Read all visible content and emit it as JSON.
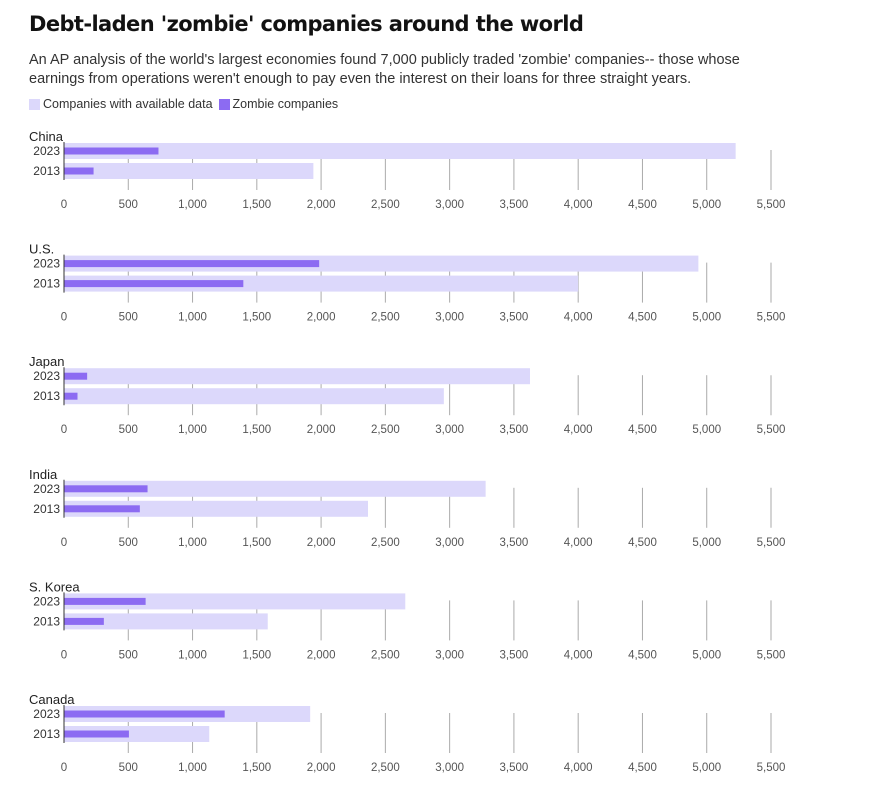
{
  "title": "Debt-laden 'zombie' companies around the world",
  "subtitle": "An AP analysis of the world's largest economies found 7,000 publicly traded 'zombie' companies-- those whose earnings from operations weren't enough to pay even the interest on their loans for three straight years.",
  "legend": {
    "available_label": "Companies with available data",
    "zombie_label": "Zombie companies"
  },
  "colors": {
    "available": "#dcd8fb",
    "zombie": "#8c6bf2",
    "gridline": "#aaaaaa"
  },
  "chart_data": [
    {
      "type": "bar",
      "orientation": "horizontal",
      "title": "China",
      "categories": [
        "2023",
        "2013"
      ],
      "series": [
        {
          "name": "Companies with available data",
          "values": [
            5225,
            1940
          ]
        },
        {
          "name": "Zombie companies",
          "values": [
            735,
            230
          ]
        }
      ],
      "xlim": [
        0,
        5500
      ],
      "xticks": [
        0,
        500,
        1000,
        1500,
        2000,
        2500,
        3000,
        3500,
        4000,
        4500,
        5000,
        5500
      ],
      "xtick_labels": [
        "0",
        "500",
        "1,000",
        "1,500",
        "2,000",
        "2,500",
        "3,000",
        "3,500",
        "4,000",
        "4,500",
        "5,000",
        "5,500"
      ]
    },
    {
      "type": "bar",
      "orientation": "horizontal",
      "title": "U.S.",
      "categories": [
        "2023",
        "2013"
      ],
      "series": [
        {
          "name": "Companies with available data",
          "values": [
            4935,
            4000
          ]
        },
        {
          "name": "Zombie companies",
          "values": [
            1985,
            1395
          ]
        }
      ],
      "xlim": [
        0,
        5500
      ],
      "xticks": [
        0,
        500,
        1000,
        1500,
        2000,
        2500,
        3000,
        3500,
        4000,
        4500,
        5000,
        5500
      ],
      "xtick_labels": [
        "0",
        "500",
        "1,000",
        "1,500",
        "2,000",
        "2,500",
        "3,000",
        "3,500",
        "4,000",
        "4,500",
        "5,000",
        "5,500"
      ]
    },
    {
      "type": "bar",
      "orientation": "horizontal",
      "title": "Japan",
      "categories": [
        "2023",
        "2013"
      ],
      "series": [
        {
          "name": "Companies with available data",
          "values": [
            3625,
            2955
          ]
        },
        {
          "name": "Zombie companies",
          "values": [
            180,
            105
          ]
        }
      ],
      "xlim": [
        0,
        5500
      ],
      "xticks": [
        0,
        500,
        1000,
        1500,
        2000,
        2500,
        3000,
        3500,
        4000,
        4500,
        5000,
        5500
      ],
      "xtick_labels": [
        "0",
        "500",
        "1,000",
        "1,500",
        "2,000",
        "2,500",
        "3,000",
        "3,500",
        "4,000",
        "4,500",
        "5,000",
        "5,500"
      ]
    },
    {
      "type": "bar",
      "orientation": "horizontal",
      "title": "India",
      "categories": [
        "2023",
        "2013"
      ],
      "series": [
        {
          "name": "Companies with available data",
          "values": [
            3280,
            2365
          ]
        },
        {
          "name": "Zombie companies",
          "values": [
            650,
            590
          ]
        }
      ],
      "xlim": [
        0,
        5500
      ],
      "xticks": [
        0,
        500,
        1000,
        1500,
        2000,
        2500,
        3000,
        3500,
        4000,
        4500,
        5000,
        5500
      ],
      "xtick_labels": [
        "0",
        "500",
        "1,000",
        "1,500",
        "2,000",
        "2,500",
        "3,000",
        "3,500",
        "4,000",
        "4,500",
        "5,000",
        "5,500"
      ]
    },
    {
      "type": "bar",
      "orientation": "horizontal",
      "title": "S. Korea",
      "categories": [
        "2023",
        "2013"
      ],
      "series": [
        {
          "name": "Companies with available data",
          "values": [
            2655,
            1585
          ]
        },
        {
          "name": "Zombie companies",
          "values": [
            635,
            310
          ]
        }
      ],
      "xlim": [
        0,
        5500
      ],
      "xticks": [
        0,
        500,
        1000,
        1500,
        2000,
        2500,
        3000,
        3500,
        4000,
        4500,
        5000,
        5500
      ],
      "xtick_labels": [
        "0",
        "500",
        "1,000",
        "1,500",
        "2,000",
        "2,500",
        "3,000",
        "3,500",
        "4,000",
        "4,500",
        "5,000",
        "5,500"
      ]
    },
    {
      "type": "bar",
      "orientation": "horizontal",
      "title": "Canada",
      "categories": [
        "2023",
        "2013"
      ],
      "series": [
        {
          "name": "Companies with available data",
          "values": [
            1915,
            1130
          ]
        },
        {
          "name": "Zombie companies",
          "values": [
            1250,
            505
          ]
        }
      ],
      "xlim": [
        0,
        5500
      ],
      "xticks": [
        0,
        500,
        1000,
        1500,
        2000,
        2500,
        3000,
        3500,
        4000,
        4500,
        5000,
        5500
      ],
      "xtick_labels": [
        "0",
        "500",
        "1,000",
        "1,500",
        "2,000",
        "2,500",
        "3,000",
        "3,500",
        "4,000",
        "4,500",
        "5,000",
        "5,500"
      ]
    }
  ]
}
